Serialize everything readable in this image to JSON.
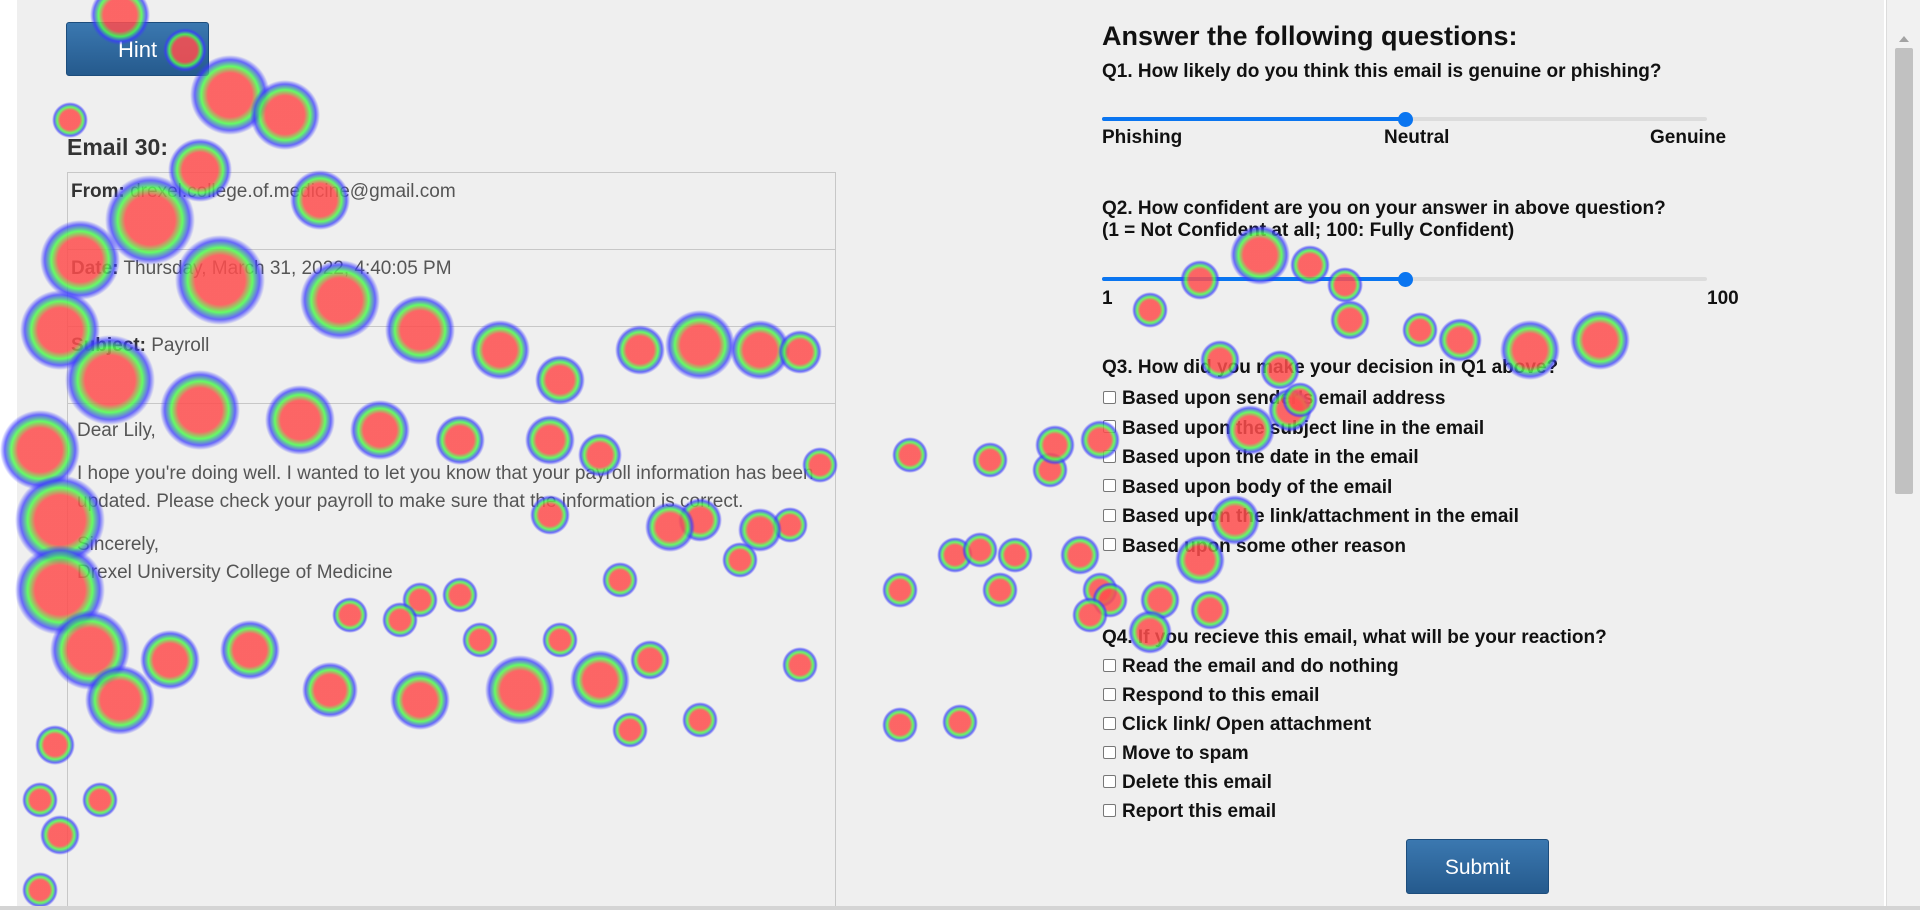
{
  "hint": {
    "label": "Hint"
  },
  "email": {
    "title": "Email 30:",
    "from_label": "From:",
    "from_value": "drexel.college.of.medicine@gmail.com",
    "date_label": "Date:",
    "date_value": "Thursday, March 31, 2022, 4:40:05 PM",
    "subject_label": "Subject:",
    "subject_value": "Payroll",
    "body": {
      "greeting": "Dear Lily,",
      "para": "I hope you're doing well. I wanted to let you know that your payroll information has been updated. Please check your payroll to make sure that the information is correct.",
      "closing": "Sincerely,",
      "signature": "Drexel University College of Medicine"
    }
  },
  "questions": {
    "title": "Answer the following questions:",
    "q1": {
      "text": "Q1. How likely do you think this email is genuine or phishing?",
      "min_label": "Phishing",
      "mid_label": "Neutral",
      "max_label": "Genuine",
      "value_fraction": 0.5
    },
    "q2": {
      "text_line1": "Q2. How confident are you on your answer in above question?",
      "text_line2": "(1 = Not Confident at all; 100: Fully Confident)",
      "min_label": "1",
      "max_label": "100",
      "value_fraction": 0.5
    },
    "q3": {
      "text": "Q3. How did you make your decision in Q1 above?",
      "options": [
        "Based upon sender's email address",
        "Based upon the subject line in the email",
        "Based upon the date in the email",
        "Based upon body of the email",
        "Based upon the link/attachment in the email",
        "Based upon some other reason"
      ]
    },
    "q4": {
      "text": "Q4. If you recieve this email, what will be your reaction?",
      "options": [
        "Read the email and do nothing",
        "Respond to this email",
        "Click link/ Open attachment",
        "Move to spam",
        "Delete this email",
        "Report this email"
      ]
    }
  },
  "submit": {
    "label": "Submit"
  },
  "colors": {
    "accent": "#0a75f0",
    "button": "#2e6aa2",
    "heat_hot": "#ff4d4d",
    "heat_mid": "#4cff4c",
    "heat_cool": "#3a3aff"
  }
}
